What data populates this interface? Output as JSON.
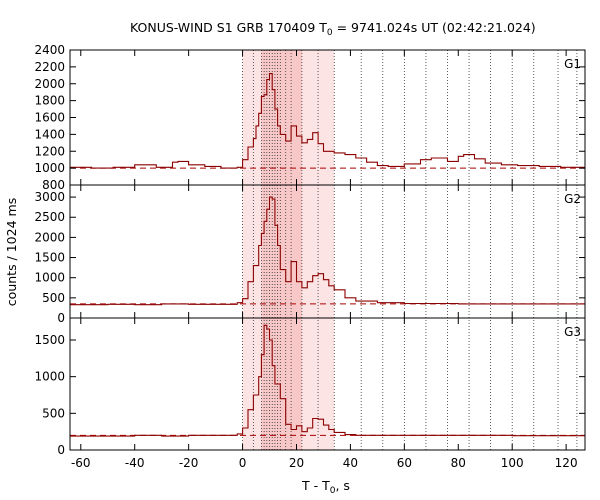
{
  "chart_data": {
    "type": "line",
    "title_main": "KONUS-WIND S1 GRB 170409 T",
    "title_sub": "0",
    "title_rest": " = 9741.024s UT (02:42:21.024)",
    "xlabel_main": "T - T",
    "xlabel_sub": "0",
    "xlabel_rest": ", s",
    "ylabel": "counts / 1024 ms",
    "xlim": [
      -64,
      127
    ],
    "xticks": [
      -60,
      -40,
      -20,
      0,
      20,
      40,
      60,
      80,
      100,
      120
    ],
    "shaded_region_outer": [
      0,
      34
    ],
    "shaded_region_inner": [
      7,
      22
    ],
    "vertical_dotted_lines": [
      0,
      4,
      7,
      8,
      9,
      10,
      11,
      12,
      13,
      14,
      16,
      18,
      22,
      28,
      34,
      44,
      52,
      60,
      68,
      76,
      84,
      92,
      100,
      108,
      117,
      124
    ],
    "colors": {
      "series": "#8b0000",
      "shade_outer": "#fde4e4",
      "shade_inner": "#f8c8c8",
      "background_line": "#aa0000"
    },
    "panels": [
      {
        "label": "G1",
        "ylim": [
          800,
          2400
        ],
        "yticks": [
          800,
          1000,
          1200,
          1400,
          1600,
          1800,
          2000,
          2200,
          2400
        ],
        "background": 1000,
        "x": [
          -64,
          -56,
          -48,
          -40,
          -32,
          -26,
          -24,
          -20,
          -14,
          -8,
          -2,
          0,
          2,
          4,
          5,
          6,
          7,
          8,
          9,
          10,
          11,
          12,
          13,
          14,
          16,
          18,
          20,
          22,
          24,
          26,
          28,
          30,
          34,
          38,
          42,
          46,
          50,
          54,
          60,
          66,
          70,
          76,
          80,
          82,
          86,
          90,
          96,
          102,
          110,
          118,
          127
        ],
        "values": [
          1010,
          1000,
          1010,
          1040,
          1010,
          1070,
          1080,
          1040,
          1020,
          1000,
          1010,
          1100,
          1250,
          1350,
          1500,
          1650,
          1850,
          1870,
          2050,
          2120,
          1930,
          1700,
          1500,
          1400,
          1320,
          1500,
          1380,
          1300,
          1340,
          1420,
          1290,
          1200,
          1180,
          1160,
          1120,
          1070,
          1030,
          1020,
          1050,
          1100,
          1120,
          1080,
          1140,
          1160,
          1110,
          1060,
          1040,
          1030,
          1020,
          1010,
          1010
        ]
      },
      {
        "label": "G2",
        "ylim": [
          0,
          3300
        ],
        "yticks": [
          0,
          500,
          1000,
          1500,
          2000,
          2500,
          3000
        ],
        "background": 350,
        "x": [
          -64,
          -50,
          -40,
          -30,
          -20,
          -10,
          -2,
          0,
          2,
          4,
          6,
          7,
          8,
          9,
          10,
          11,
          12,
          13,
          14,
          16,
          18,
          20,
          22,
          24,
          26,
          28,
          30,
          32,
          34,
          38,
          42,
          50,
          60,
          80,
          100,
          127
        ],
        "values": [
          330,
          340,
          330,
          350,
          340,
          340,
          380,
          480,
          900,
          1300,
          1800,
          2100,
          2400,
          2700,
          3000,
          2950,
          2300,
          1800,
          1200,
          900,
          1400,
          900,
          750,
          900,
          1050,
          1100,
          950,
          800,
          700,
          500,
          420,
          380,
          360,
          350,
          350,
          340
        ]
      },
      {
        "label": "G3",
        "ylim": [
          0,
          1800
        ],
        "yticks": [
          0,
          500,
          1000,
          1500
        ],
        "background": 200,
        "x": [
          -64,
          -50,
          -40,
          -30,
          -20,
          -10,
          -2,
          0,
          2,
          4,
          6,
          7,
          8,
          9,
          10,
          11,
          12,
          13,
          14,
          16,
          18,
          20,
          22,
          24,
          26,
          28,
          30,
          32,
          34,
          38,
          42,
          50,
          60,
          80,
          100,
          127
        ],
        "values": [
          190,
          190,
          200,
          190,
          200,
          200,
          220,
          300,
          550,
          750,
          1000,
          1300,
          1700,
          1650,
          1500,
          1150,
          900,
          900,
          700,
          350,
          280,
          330,
          250,
          300,
          430,
          420,
          340,
          280,
          240,
          210,
          200,
          200,
          200,
          200,
          195,
          195
        ]
      }
    ]
  }
}
